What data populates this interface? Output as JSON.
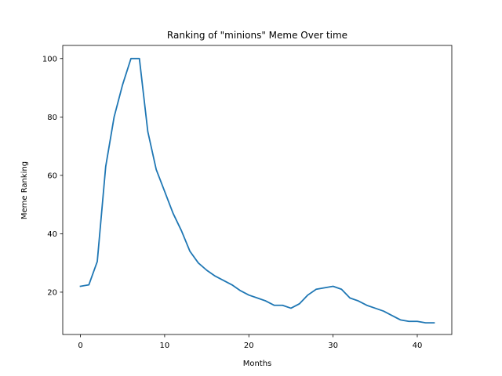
{
  "chart_data": {
    "type": "line",
    "title": "Ranking of \"minions\" Meme Over time",
    "xlabel": "Months",
    "ylabel": "Meme Ranking",
    "xlim": [
      -2.1,
      44.1
    ],
    "ylim": [
      5.5,
      104.5
    ],
    "xticks": [
      0,
      10,
      20,
      30,
      40
    ],
    "yticks": [
      20,
      40,
      60,
      80,
      100
    ],
    "grid": false,
    "color": "#1f77b4",
    "series": [
      {
        "x": [
          0,
          1,
          2,
          3,
          4,
          5,
          6,
          7,
          8,
          9,
          10,
          11,
          12,
          13,
          14,
          15,
          16,
          17,
          18,
          19,
          20,
          21,
          22,
          23,
          24,
          25,
          26,
          27,
          28,
          29,
          30,
          31,
          32,
          33,
          34,
          35,
          36,
          37,
          38,
          39,
          40,
          41,
          42
        ],
        "values": [
          22,
          22.5,
          30.5,
          63,
          80,
          91,
          100,
          100,
          75,
          62,
          54.5,
          47,
          41,
          34,
          30,
          27.5,
          25.5,
          24,
          22.5,
          20.5,
          19,
          18,
          17,
          15.5,
          15.5,
          14.5,
          16,
          19,
          21,
          21.5,
          22,
          21,
          18,
          17,
          15.5,
          14.5,
          13.5,
          12,
          10.5,
          10,
          10,
          9.5,
          9.5
        ]
      }
    ]
  }
}
